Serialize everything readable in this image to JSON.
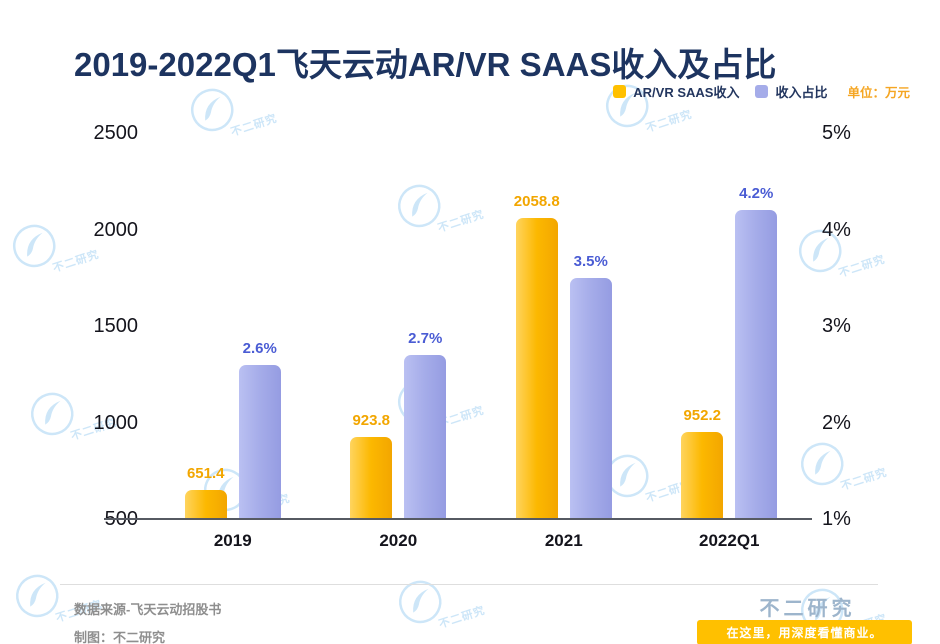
{
  "title": "2019-2022Q1飞天云动AR/VR SAAS收入及占比",
  "legend": {
    "series1": "AR/VR SAAS收入",
    "series2": "收入占比",
    "unit": "单位：万元"
  },
  "chart_data": {
    "type": "bar",
    "categories": [
      "2019",
      "2020",
      "2021",
      "2022Q1"
    ],
    "series": [
      {
        "name": "AR/VR SAAS收入",
        "axis": "left",
        "color": "#FFC000",
        "values": [
          651.4,
          923.8,
          2058.8,
          952.2
        ],
        "labels": [
          "651.4",
          "923.8",
          "2058.8",
          "952.2"
        ]
      },
      {
        "name": "收入占比",
        "axis": "right",
        "color": "#A5ACE9",
        "values": [
          2.6,
          2.7,
          3.5,
          4.2
        ],
        "labels": [
          "2.6%",
          "2.7%",
          "3.5%",
          "4.2%"
        ]
      }
    ],
    "left_axis": {
      "min": 500,
      "max": 2500,
      "ticks": [
        "2500",
        "2000",
        "1500",
        "1000",
        "500"
      ]
    },
    "right_axis": {
      "min": 1,
      "max": 5,
      "ticks": [
        "5%",
        "4%",
        "3%",
        "2%",
        "1%"
      ]
    },
    "unit": "万元",
    "grid": false,
    "legend_position": "top-right"
  },
  "footer": {
    "source": "数据来源-飞天云动招股书",
    "credit": "制图：不二研究"
  },
  "branding": {
    "name": "不二研究",
    "slogan": "在这里，用深度看懂商业。"
  },
  "watermark": {
    "text": "不二研究"
  },
  "colors": {
    "title": "#1D3460",
    "bar_yellow": "#FFC000",
    "bar_purple": "#A5ACE9",
    "revenue_label": "#F2A600",
    "ratio_label": "#4A5CD4",
    "unit_text": "#F5A623",
    "watermark": "#CDE6F8",
    "badge_bg": "#FFC000",
    "badge_text": "#FFFFFF"
  }
}
